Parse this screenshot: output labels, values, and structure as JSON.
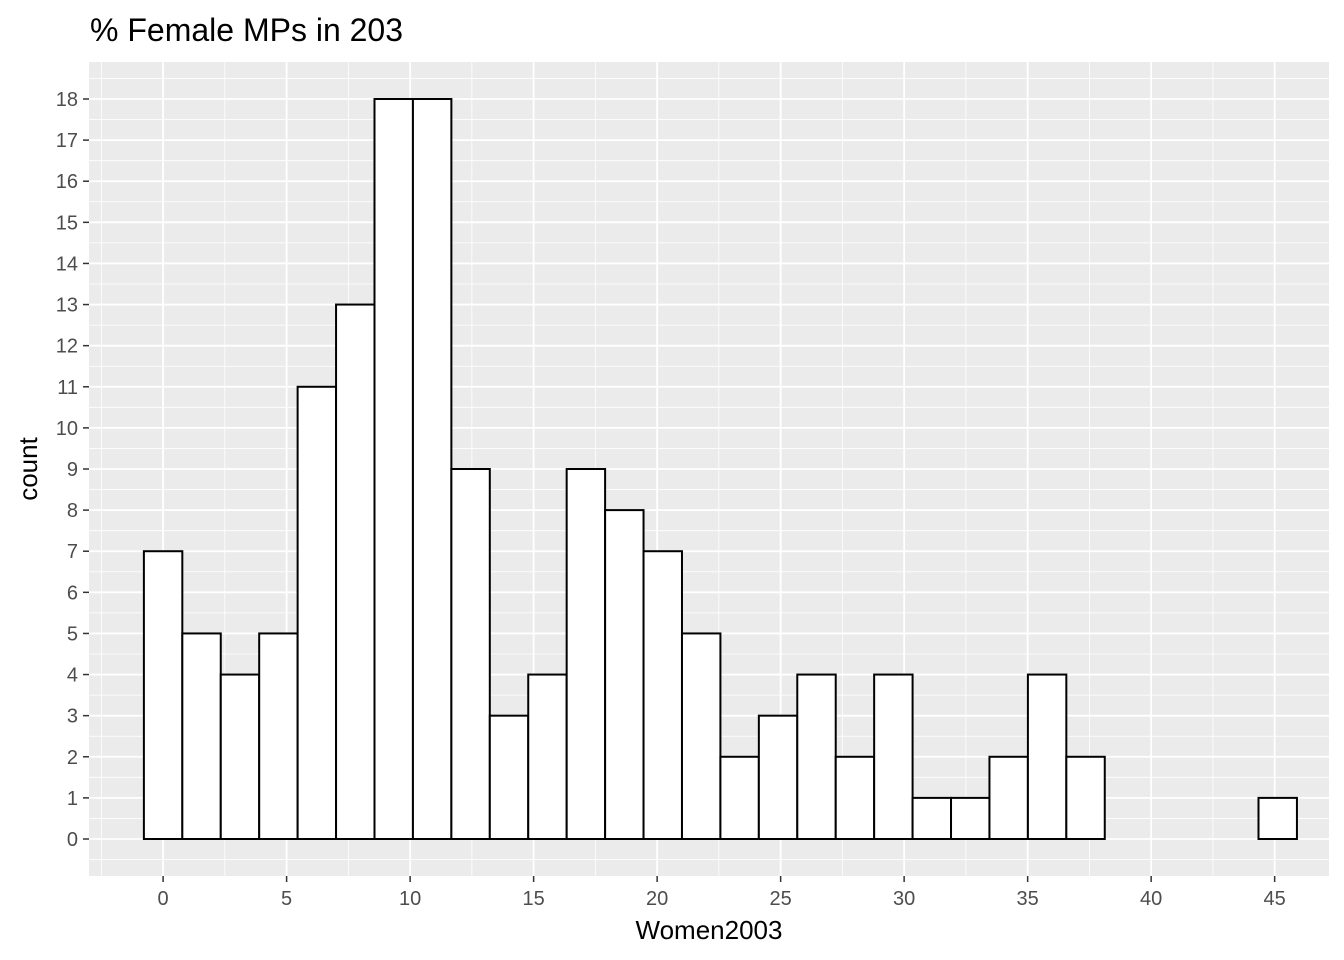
{
  "chart_data": {
    "type": "bar",
    "title": "% Female MPs in 203",
    "xlabel": "Women2003",
    "ylabel": "count",
    "xlim": [
      -3,
      47.2
    ],
    "ylim": [
      -0.9,
      18.9
    ],
    "x_ticks": [
      0,
      5,
      10,
      15,
      20,
      25,
      30,
      35,
      40,
      45
    ],
    "y_ticks": [
      0,
      1,
      2,
      3,
      4,
      5,
      6,
      7,
      8,
      9,
      10,
      11,
      12,
      13,
      14,
      15,
      16,
      17,
      18
    ],
    "bin_width": 1.556,
    "bin_start": -0.778,
    "values": [
      7,
      5,
      4,
      5,
      11,
      13,
      18,
      18,
      9,
      3,
      4,
      9,
      8,
      7,
      5,
      2,
      3,
      4,
      2,
      4,
      1,
      1,
      2,
      4,
      2,
      0,
      0,
      0,
      0,
      1
    ],
    "grid": true,
    "colors": {
      "panel": "#ebebeb",
      "grid": "#ffffff",
      "bar_fill": "#ffffff",
      "bar_stroke": "#000000"
    }
  }
}
